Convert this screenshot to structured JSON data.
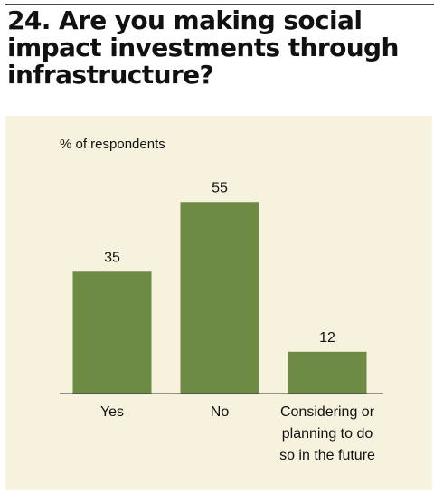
{
  "title": "24. Are you making social impact investments through infrastructure?",
  "chart_data": {
    "type": "bar",
    "ylabel": "% of respondents",
    "categories": [
      [
        "Yes"
      ],
      [
        "No"
      ],
      [
        "Considering or",
        "planning to do",
        "so in the future"
      ]
    ],
    "values": [
      35,
      55,
      12
    ],
    "data_labels": [
      "35",
      "55",
      "12"
    ],
    "ylim": [
      0,
      60
    ],
    "grid": false,
    "bar_color": "#6e8b46",
    "panel_color": "#f6f2de"
  }
}
